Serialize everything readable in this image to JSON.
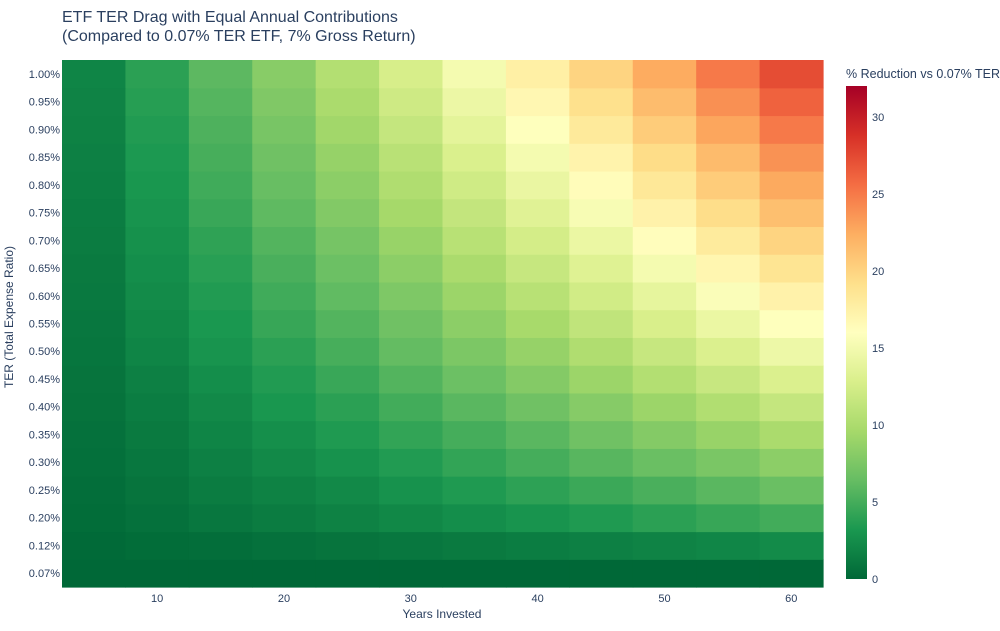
{
  "chart_data": {
    "type": "heatmap",
    "title_lines": [
      "ETF TER Drag with Equal Annual Contributions",
      "(Compared to 0.07% TER ETF, 7% Gross Return)"
    ],
    "xlabel": "Years Invested",
    "ylabel": "TER (Total Expense Ratio)",
    "x": [
      5,
      10,
      15,
      20,
      25,
      30,
      35,
      40,
      45,
      50,
      55,
      60
    ],
    "x_ticks": [
      10,
      20,
      30,
      40,
      50,
      60
    ],
    "x_tick_labels": [
      "10",
      "20",
      "30",
      "40",
      "50",
      "60"
    ],
    "y": [
      "0.07%",
      "0.12%",
      "0.20%",
      "0.25%",
      "0.30%",
      "0.35%",
      "0.40%",
      "0.45%",
      "0.50%",
      "0.55%",
      "0.60%",
      "0.65%",
      "0.70%",
      "0.75%",
      "0.80%",
      "0.85%",
      "0.90%",
      "0.95%",
      "1.00%"
    ],
    "z": [
      [
        0.0,
        0.0,
        0.0,
        0.0,
        0.0,
        0.0,
        0.0,
        0.0,
        0.0,
        0.0,
        0.0,
        0.0
      ],
      [
        0.1,
        0.3,
        0.4,
        0.6,
        0.8,
        1.0,
        1.2,
        1.4,
        1.6,
        1.8,
        2.0,
        2.3
      ],
      [
        0.3,
        0.6,
        1.0,
        1.3,
        1.7,
        2.1,
        2.5,
        2.9,
        3.4,
        3.9,
        4.4,
        4.9
      ],
      [
        0.4,
        0.8,
        1.3,
        1.7,
        2.2,
        2.8,
        3.4,
        4.0,
        4.6,
        5.2,
        5.9,
        6.6
      ],
      [
        0.5,
        1.0,
        1.6,
        2.2,
        2.8,
        3.5,
        4.2,
        5.0,
        5.8,
        6.6,
        7.4,
        8.3
      ],
      [
        0.6,
        1.2,
        1.9,
        2.6,
        3.4,
        4.2,
        5.0,
        5.9,
        6.9,
        7.9,
        8.9,
        9.9
      ],
      [
        0.7,
        1.4,
        2.2,
        3.1,
        3.9,
        4.9,
        5.9,
        6.9,
        8.0,
        9.1,
        10.3,
        11.5
      ],
      [
        0.8,
        1.6,
        2.5,
        3.5,
        4.5,
        5.6,
        6.7,
        7.9,
        9.1,
        10.4,
        11.7,
        13.0
      ],
      [
        0.9,
        1.9,
        2.9,
        3.9,
        5.1,
        6.3,
        7.5,
        8.8,
        10.2,
        11.6,
        13.0,
        14.5
      ],
      [
        1.0,
        2.1,
        3.2,
        4.4,
        5.6,
        6.9,
        8.3,
        9.7,
        11.2,
        12.8,
        14.3,
        15.9
      ],
      [
        1.1,
        2.3,
        3.5,
        4.8,
        6.2,
        7.6,
        9.1,
        10.7,
        12.3,
        13.9,
        15.6,
        17.3
      ],
      [
        1.2,
        2.5,
        3.8,
        5.2,
        6.7,
        8.3,
        9.9,
        11.6,
        13.3,
        15.1,
        16.9,
        18.7
      ],
      [
        1.3,
        2.7,
        4.1,
        5.6,
        7.2,
        8.9,
        10.7,
        12.5,
        14.3,
        16.2,
        18.1,
        20.0
      ],
      [
        1.4,
        2.9,
        4.5,
        6.1,
        7.8,
        9.6,
        11.4,
        13.4,
        15.3,
        17.3,
        19.3,
        21.3
      ],
      [
        1.5,
        3.1,
        4.8,
        6.5,
        8.3,
        10.2,
        12.2,
        14.2,
        16.3,
        18.4,
        20.5,
        22.6
      ],
      [
        1.6,
        3.3,
        5.1,
        6.9,
        8.8,
        10.8,
        12.9,
        15.1,
        17.2,
        19.4,
        21.6,
        23.8
      ],
      [
        1.7,
        3.5,
        5.4,
        7.3,
        9.4,
        11.5,
        13.7,
        15.9,
        18.2,
        20.5,
        22.8,
        25.0
      ],
      [
        1.8,
        3.7,
        5.7,
        7.7,
        9.9,
        12.1,
        14.4,
        16.8,
        19.1,
        21.5,
        23.9,
        26.2
      ],
      [
        1.9,
        3.9,
        6.0,
        8.1,
        10.4,
        12.7,
        15.1,
        17.6,
        20.0,
        22.5,
        25.0,
        27.3
      ]
    ],
    "zmin": 0,
    "zmax": 32,
    "colorscale": [
      "#006837",
      "#1a9850",
      "#66bd63",
      "#a6d96a",
      "#d9ef8b",
      "#ffffbf",
      "#fee08b",
      "#fdae61",
      "#f46d43",
      "#d73027",
      "#a50026"
    ],
    "colorbar": {
      "title": "% Reduction vs 0.07% TER",
      "ticks": [
        0,
        5,
        10,
        15,
        20,
        25,
        30
      ],
      "tick_labels": [
        "0",
        "5",
        "10",
        "15",
        "20",
        "25",
        "30"
      ]
    },
    "grid": false,
    "legend": "none"
  }
}
